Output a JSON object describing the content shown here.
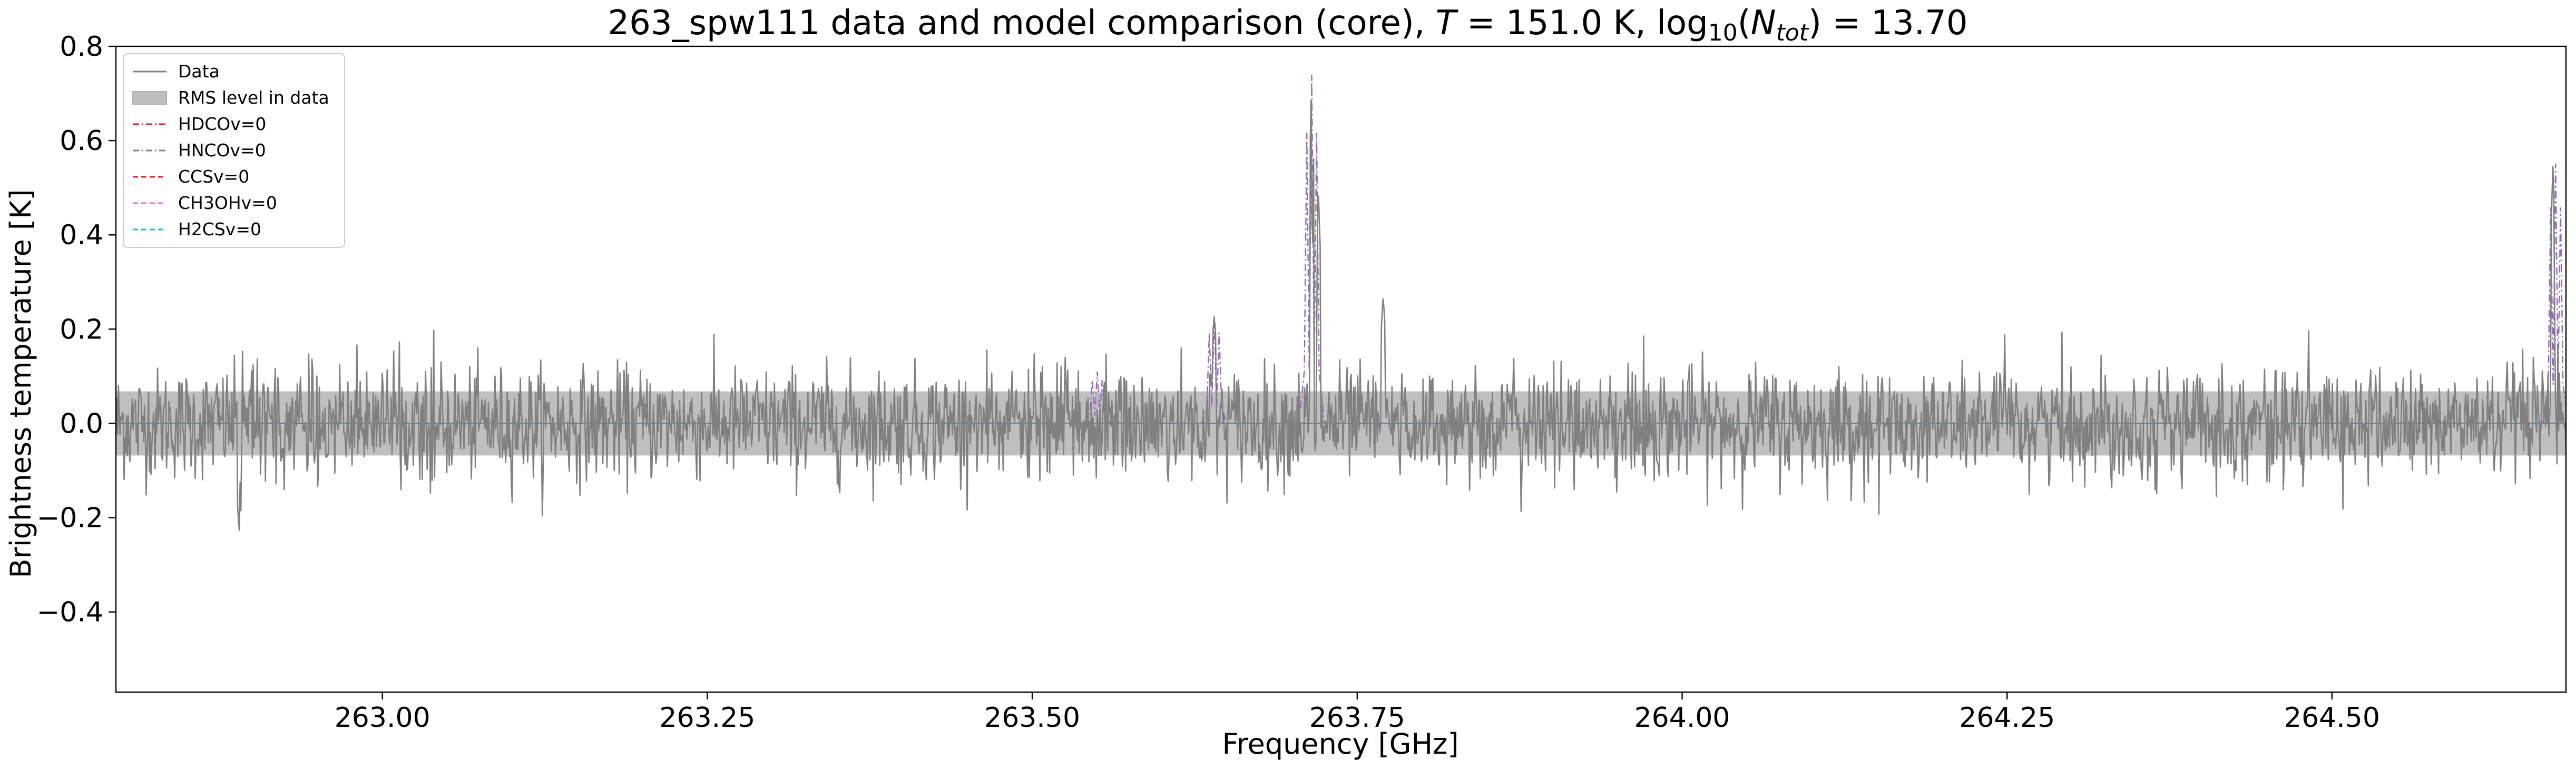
{
  "chart_data": {
    "type": "line",
    "title": {
      "prefix": "263_spw111 data and model comparison (core), ",
      "T_symbol": "T",
      "T_text": " = 151.0 K, log",
      "log_sub": "10",
      "N_open": "(",
      "N_symbol": "N",
      "N_sub": "tot",
      "N_close": ") = 13.70"
    },
    "xlabel": "Frequency [GHz]",
    "ylabel": "Brightness temperature [K]",
    "xlim": [
      262.795,
      264.68
    ],
    "ylim": [
      -0.57,
      0.8
    ],
    "xticks": [
      263.0,
      263.25,
      263.5,
      263.75,
      264.0,
      264.25,
      264.5
    ],
    "xtick_labels": [
      "263.00",
      "263.25",
      "263.50",
      "263.75",
      "264.00",
      "264.25",
      "264.50"
    ],
    "yticks": [
      -0.4,
      -0.2,
      0.0,
      0.2,
      0.4,
      0.6,
      0.8
    ],
    "ytick_labels": [
      "−0.4",
      "−0.2",
      "0.0",
      "0.2",
      "0.4",
      "0.6",
      "0.8"
    ],
    "grid": false,
    "legend_position": "upper-left",
    "rms_level": 0.068,
    "legend": [
      {
        "label": "Data",
        "color": "#808080",
        "style": "solid",
        "kind": "line"
      },
      {
        "label": "RMS level in data",
        "color": "#bfbfbf",
        "style": "patch",
        "kind": "patch"
      },
      {
        "label": "HDCOv=0",
        "color": "#d62728",
        "style": "dashdot",
        "kind": "line"
      },
      {
        "label": "HNCOv=0",
        "color": "#9467bd",
        "style": "dashdot",
        "kind": "line"
      },
      {
        "label": "CCSv=0",
        "color": "#d62728",
        "style": "dashed",
        "kind": "line"
      },
      {
        "label": "CH3OHv=0",
        "color": "#e377c2",
        "style": "dashed",
        "kind": "line"
      },
      {
        "label": "H2CSv=0",
        "color": "#17becf",
        "style": "dashed",
        "kind": "line"
      }
    ],
    "data_series": {
      "name": "Data",
      "noise_sigma": 0.068,
      "peaks": [
        {
          "x": 263.715,
          "y": 0.74
        },
        {
          "x": 263.72,
          "y": 0.5
        },
        {
          "x": 263.64,
          "y": 0.23
        },
        {
          "x": 263.77,
          "y": 0.27
        },
        {
          "x": 264.67,
          "y": 0.55
        },
        {
          "x": 262.89,
          "y": -0.23
        }
      ]
    },
    "model_lines": [
      {
        "name": "HNCOv=0",
        "color": "#9467bd",
        "style": "dashdot",
        "x": 263.715,
        "y": 0.74
      },
      {
        "name": "HNCOv=0",
        "color": "#9467bd",
        "style": "dashdot",
        "x": 263.64,
        "y": 0.23
      },
      {
        "name": "HNCOv=0",
        "color": "#9467bd",
        "style": "dashdot",
        "x": 263.55,
        "y": 0.11
      },
      {
        "name": "HNCOv=0",
        "color": "#9467bd",
        "style": "dashdot",
        "x": 264.672,
        "y": 0.55
      }
    ],
    "baseline": {
      "y": 0.0,
      "color": "#1f77b4"
    }
  }
}
